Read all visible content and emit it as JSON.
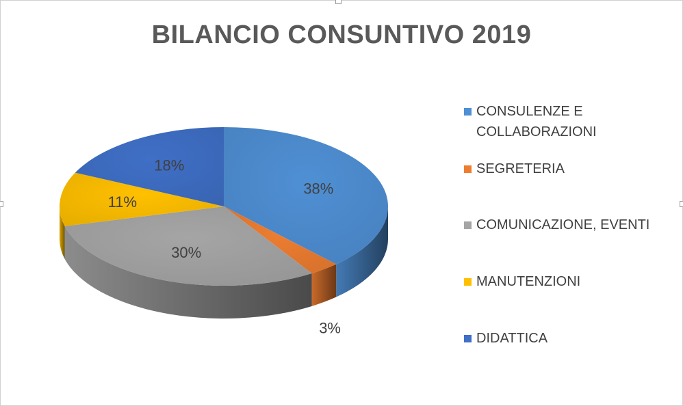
{
  "chart_data": {
    "type": "pie",
    "title": "BILANCIO CONSUNTIVO 2019",
    "slices": [
      {
        "label": "CONSULENZE E COLLABORAZIONI",
        "value": 38,
        "display": "38%",
        "color": "#4f8fd4"
      },
      {
        "label": "SEGRETERIA",
        "value": 3,
        "display": "3%",
        "color": "#ed7d31"
      },
      {
        "label": "COMUNICAZIONE, EVENTI",
        "value": 30,
        "display": "30%",
        "color": "#a5a5a5"
      },
      {
        "label": "MANUTENZIONI",
        "value": 11,
        "display": "11%",
        "color": "#ffc000"
      },
      {
        "label": "DIDATTICA",
        "value": 18,
        "display": "18%",
        "color": "#3f6fc6"
      }
    ],
    "legend_position": "right",
    "three_d": true
  },
  "legend": {
    "items": [
      {
        "line1": "CONSULENZE E",
        "line2": "COLLABORAZIONI"
      },
      {
        "line1": "SEGRETERIA",
        "line2": ""
      },
      {
        "line1": "COMUNICAZIONE, EVENTI",
        "line2": ""
      },
      {
        "line1": "MANUTENZIONI",
        "line2": ""
      },
      {
        "line1": "DIDATTICA",
        "line2": ""
      }
    ]
  }
}
